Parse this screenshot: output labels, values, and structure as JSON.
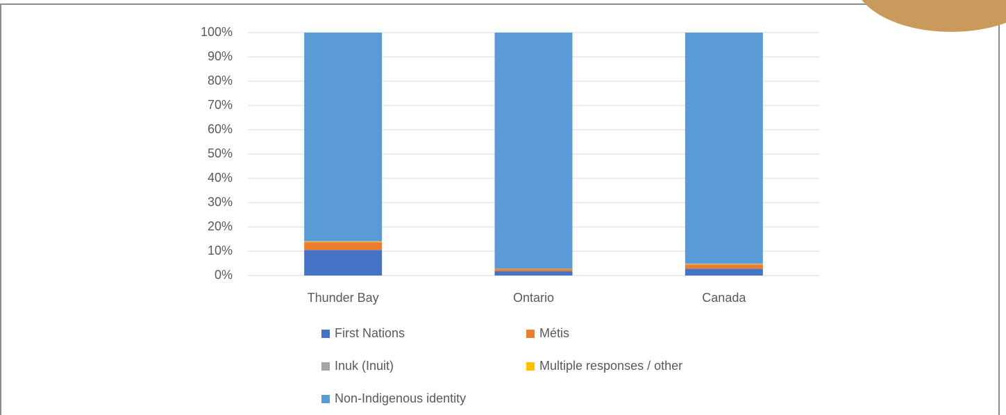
{
  "chart_data": {
    "type": "stacked_bar",
    "categories": [
      "Thunder Bay",
      "Ontario",
      "Canada"
    ],
    "series": [
      {
        "name": "First Nations",
        "color": "#4472c4",
        "values": [
          10.5,
          1.8,
          2.8
        ]
      },
      {
        "name": "Métis",
        "color": "#ed7d31",
        "values": [
          3.2,
          0.9,
          1.7
        ]
      },
      {
        "name": "Inuk (Inuit)",
        "color": "#a5a5a5",
        "values": [
          0.1,
          0.0,
          0.2
        ]
      },
      {
        "name": "Multiple responses / other",
        "color": "#ffc000",
        "values": [
          0.3,
          0.1,
          0.2
        ]
      },
      {
        "name": "Non-Indigenous identity",
        "color": "#5b9bd5",
        "values": [
          85.9,
          97.2,
          95.1
        ]
      }
    ],
    "ylim": [
      0,
      100
    ],
    "yticks": [
      {
        "value": 0,
        "label": "0%"
      },
      {
        "value": 10,
        "label": "10%"
      },
      {
        "value": 20,
        "label": "20%"
      },
      {
        "value": 30,
        "label": "30%"
      },
      {
        "value": 40,
        "label": "40%"
      },
      {
        "value": 50,
        "label": "50%"
      },
      {
        "value": 60,
        "label": "60%"
      },
      {
        "value": 70,
        "label": "70%"
      },
      {
        "value": 80,
        "label": "80%"
      },
      {
        "value": 90,
        "label": "90%"
      },
      {
        "value": 100,
        "label": "100%"
      }
    ],
    "grid": true,
    "legend": "bottom"
  }
}
